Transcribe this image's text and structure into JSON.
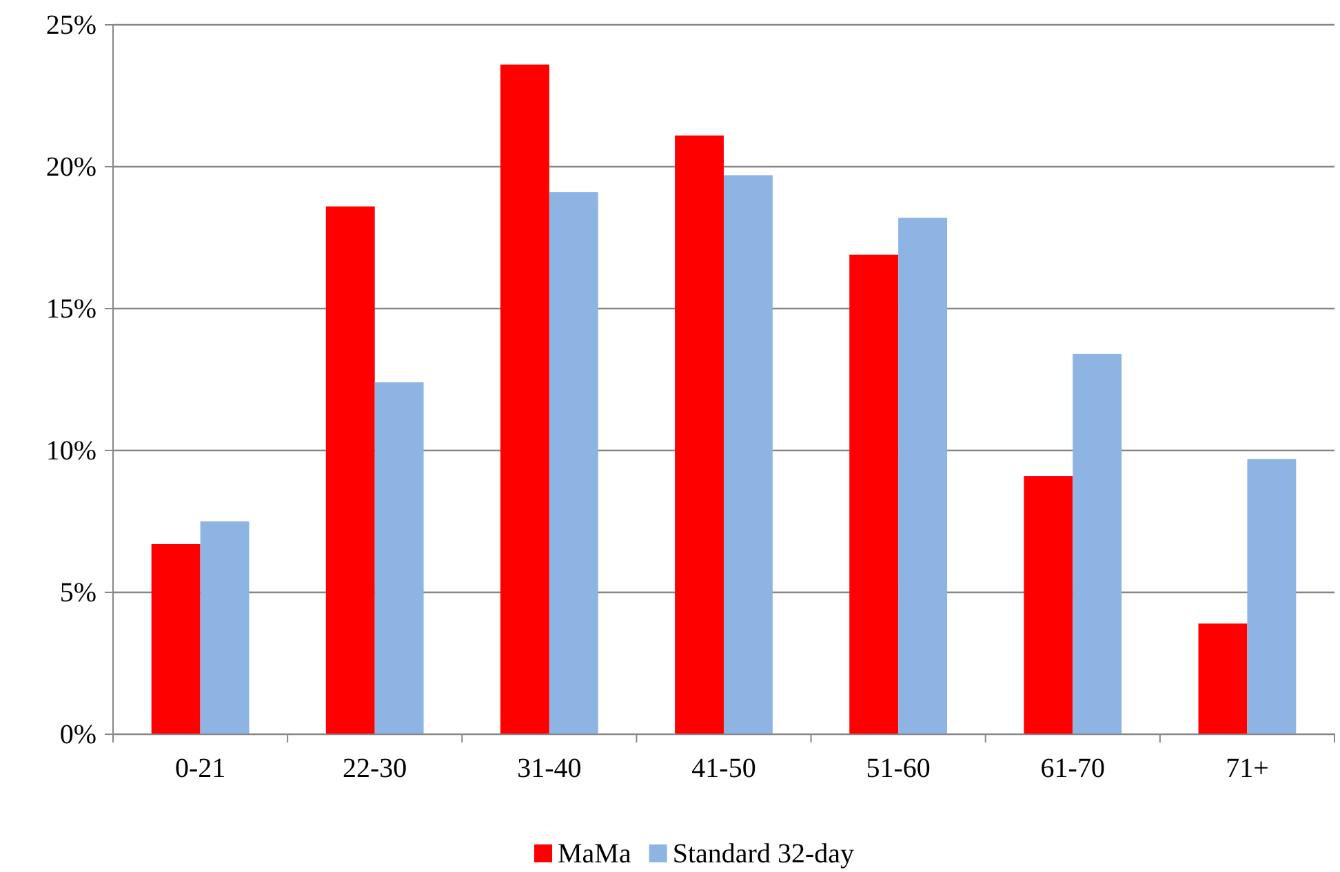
{
  "chart_data": {
    "type": "bar",
    "categories": [
      "0-21",
      "22-30",
      "31-40",
      "41-50",
      "51-60",
      "61-70",
      "71+"
    ],
    "series": [
      {
        "name": "MaMa",
        "color": "#ff0000",
        "values": [
          6.7,
          18.6,
          23.6,
          21.1,
          16.9,
          9.1,
          3.9
        ]
      },
      {
        "name": "Standard 32-day",
        "color": "#8db4e2",
        "values": [
          7.5,
          12.4,
          19.1,
          19.7,
          18.2,
          13.4,
          9.7
        ]
      }
    ],
    "ylim": [
      0,
      25
    ],
    "yticks": [
      {
        "value": 0,
        "label": "0%"
      },
      {
        "value": 5,
        "label": "5%"
      },
      {
        "value": 10,
        "label": "10%"
      },
      {
        "value": 15,
        "label": "15%"
      },
      {
        "value": 20,
        "label": "20%"
      },
      {
        "value": 25,
        "label": "25%"
      }
    ],
    "grid": "y",
    "legend": "bottom"
  }
}
